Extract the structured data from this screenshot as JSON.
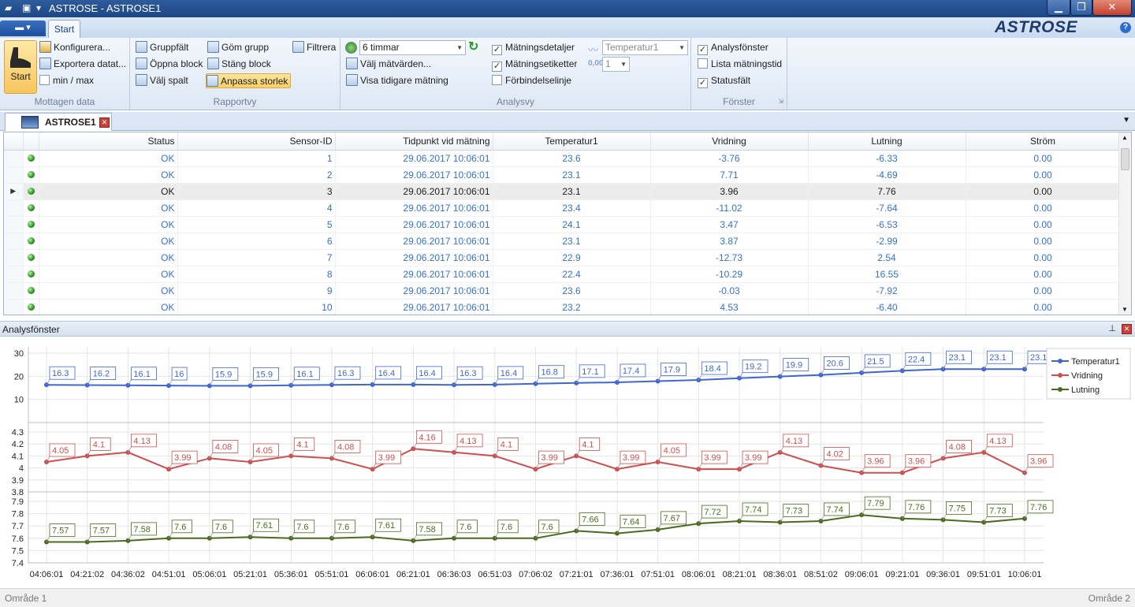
{
  "titlebar": {
    "title": "ASTROSE - ASTROSE1"
  },
  "tabs": {
    "file": "▬ ▾",
    "start": "Start"
  },
  "brand": {
    "logo": "ASTROSE",
    "help": "?"
  },
  "ribbon": {
    "mottagen": {
      "label": "Mottagen data",
      "start": "Start",
      "konfigurera": "Konfigurera...",
      "exportera": "Exportera datat...",
      "minmax": "min / max"
    },
    "rapportvy": {
      "label": "Rapportvy",
      "gruppfalt": "Gruppfält",
      "gom_grupp": "Göm grupp",
      "filtrera": "Filtrera",
      "oppna_block": "Öppna block",
      "stang_block": "Stäng block",
      "valj_spalt": "Välj spalt",
      "anpassa": "Anpassa storlek"
    },
    "analysvy": {
      "label": "Analysvy",
      "period": "6 timmar",
      "valj": "Välj mätvärden...",
      "visa": "Visa tidigare mätning",
      "detaljer": "Mätningsdetaljer",
      "etiketter": "Mätningsetiketter",
      "forbindelse": "Förbindelselinje",
      "param": "Temperatur1",
      "count": "1",
      "count_icon": "0,00"
    },
    "fonster": {
      "label": "Fönster",
      "analys": "Analysfönster",
      "lista": "Lista mätningstid",
      "status": "Statusfält"
    }
  },
  "doc": {
    "tab": "ASTROSE1"
  },
  "grid": {
    "columns": [
      "Status",
      "Sensor-ID",
      "Tidpunkt vid mätning",
      "Temperatur1",
      "Vridning",
      "Lutning",
      "Ström"
    ],
    "rows": [
      [
        "OK",
        "1",
        "29.06.2017 10:06:01",
        "23.6",
        "-3.76",
        "-6.33",
        "0.00"
      ],
      [
        "OK",
        "2",
        "29.06.2017 10:06:01",
        "23.1",
        "7.71",
        "-4.69",
        "0.00"
      ],
      [
        "OK",
        "3",
        "29.06.2017 10:06:01",
        "23.1",
        "3.96",
        "7.76",
        "0.00"
      ],
      [
        "OK",
        "4",
        "29.06.2017 10:06:01",
        "23.4",
        "-11.02",
        "-7.64",
        "0.00"
      ],
      [
        "OK",
        "5",
        "29.06.2017 10:06:01",
        "24.1",
        "3.47",
        "-6.53",
        "0.00"
      ],
      [
        "OK",
        "6",
        "29.06.2017 10:06:01",
        "23.1",
        "3.87",
        "-2.99",
        "0.00"
      ],
      [
        "OK",
        "7",
        "29.06.2017 10:06:01",
        "22.9",
        "-12.73",
        "2.54",
        "0.00"
      ],
      [
        "OK",
        "8",
        "29.06.2017 10:06:01",
        "22.4",
        "-10.29",
        "16.55",
        "0.00"
      ],
      [
        "OK",
        "9",
        "29.06.2017 10:06:01",
        "23.6",
        "-0.03",
        "-7.92",
        "0.00"
      ],
      [
        "OK",
        "10",
        "29.06.2017 10:06:01",
        "23.2",
        "4.53",
        "-6.40",
        "0.00"
      ]
    ]
  },
  "panel": {
    "title": "Analysfönster"
  },
  "status": {
    "left": "Område 1",
    "right": "Område 2"
  },
  "colors": {
    "temp": "#3f66d3",
    "vrid": "#cc5050",
    "lut": "#4c6b1f"
  },
  "chart_data": {
    "type": "line",
    "x": [
      "04:06:01",
      "04:21:02",
      "04:36:02",
      "04:51:01",
      "05:06:01",
      "05:21:01",
      "05:36:01",
      "05:51:01",
      "06:06:01",
      "06:21:01",
      "06:36:03",
      "06:51:03",
      "07:06:02",
      "07:21:01",
      "07:36:01",
      "07:51:01",
      "08:06:01",
      "08:21:01",
      "08:36:01",
      "08:51:02",
      "09:06:01",
      "09:21:01",
      "09:36:01",
      "09:51:01",
      "10:06:01"
    ],
    "series": [
      {
        "name": "Temperatur1",
        "ylim": [
          0,
          30
        ],
        "yticks": [
          "30",
          "20",
          "10"
        ],
        "values": [
          16.3,
          16.2,
          16.1,
          16,
          15.9,
          15.9,
          16.1,
          16.3,
          16.4,
          16.4,
          16.3,
          16.4,
          16.8,
          17.1,
          17.4,
          17.9,
          18.4,
          19.2,
          19.9,
          20.6,
          21.5,
          22.4,
          23.1,
          23.1,
          23.1
        ]
      },
      {
        "name": "Vridning",
        "ylim": [
          3.8,
          4.3
        ],
        "yticks": [
          "4.3",
          "4.2",
          "4.1",
          "4",
          "3.9",
          "3.8"
        ],
        "values": [
          4.05,
          4.1,
          4.13,
          3.99,
          4.08,
          4.05,
          4.1,
          4.08,
          3.99,
          4.16,
          4.13,
          4.1,
          3.99,
          4.1,
          3.99,
          4.05,
          3.99,
          3.99,
          4.13,
          4.02,
          3.96,
          3.96,
          4.08,
          4.13,
          3.96
        ]
      },
      {
        "name": "Lutning",
        "ylim": [
          7.4,
          7.9
        ],
        "yticks": [
          "7.9",
          "7.8",
          "7.7",
          "7.6",
          "7.5",
          "7.4"
        ],
        "values": [
          7.57,
          7.57,
          7.58,
          7.6,
          7.6,
          7.61,
          7.6,
          7.6,
          7.61,
          7.58,
          7.6,
          7.6,
          7.6,
          7.66,
          7.64,
          7.67,
          7.72,
          7.74,
          7.73,
          7.74,
          7.79,
          7.76,
          7.75,
          7.73,
          7.76
        ]
      }
    ],
    "legend": "top-right",
    "grid": true
  }
}
